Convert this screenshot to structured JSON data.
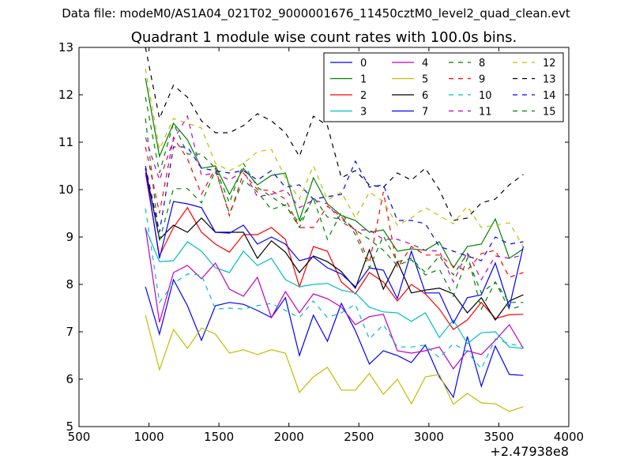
{
  "figure": {
    "supertitle": "Data file: modeM0/AS1A04_021T02_9000001676_11450cztM0_level2_quad_clean.evt",
    "x_offset_label": "+2.47938e8"
  },
  "chart_data": {
    "type": "line",
    "title": "Quadrant 1 module wise count rates with 100.0s bins.",
    "xlabel": "",
    "ylabel": "",
    "xlim": [
      500,
      4000
    ],
    "ylim": [
      5,
      13
    ],
    "xticks": [
      500,
      1000,
      1500,
      2000,
      2500,
      3000,
      3500,
      4000
    ],
    "yticks": [
      5,
      6,
      7,
      8,
      9,
      10,
      11,
      12,
      13
    ],
    "x_offset": "+2.47938e8",
    "grid": false,
    "legend": {
      "placement": "upper right",
      "columns": 4
    },
    "x": [
      975,
      1075,
      1175,
      1275,
      1375,
      1475,
      1575,
      1675,
      1775,
      1875,
      1975,
      2075,
      2175,
      2275,
      2375,
      2475,
      2575,
      2675,
      2775,
      2875,
      2975,
      3075,
      3175,
      3275,
      3375,
      3475,
      3575,
      3675
    ],
    "series": [
      {
        "name": "0",
        "color": "#0000ff",
        "dash": "solid",
        "values": [
          7.95,
          6.95,
          8.1,
          7.55,
          6.82,
          7.55,
          7.62,
          7.58,
          7.45,
          7.3,
          7.72,
          6.5,
          7.35,
          6.8,
          7.6,
          7.02,
          6.32,
          6.6,
          6.5,
          6.35,
          6.72,
          6.05,
          5.62,
          6.9,
          5.85,
          6.7,
          6.1,
          6.08
        ]
      },
      {
        "name": "1",
        "color": "#008000",
        "dash": "solid",
        "values": [
          12.35,
          10.7,
          11.4,
          11.05,
          10.45,
          10.5,
          9.9,
          10.45,
          10.1,
          10.3,
          10.35,
          9.35,
          10.25,
          9.7,
          9.45,
          9.35,
          9.1,
          9.15,
          8.7,
          8.75,
          8.72,
          8.9,
          8.35,
          8.8,
          8.85,
          9.38,
          8.55,
          8.75
        ]
      },
      {
        "name": "2",
        "color": "#ff0000",
        "dash": "solid",
        "values": [
          10.35,
          8.6,
          9.2,
          9.62,
          9.1,
          8.85,
          8.68,
          9.05,
          9.05,
          9.2,
          8.95,
          7.95,
          8.8,
          8.7,
          8.05,
          7.8,
          8.25,
          8.05,
          7.65,
          8.0,
          7.8,
          7.48,
          7.05,
          7.25,
          7.62,
          7.28,
          7.36,
          7.37
        ]
      },
      {
        "name": "3",
        "color": "#00bfbf",
        "dash": "solid",
        "values": [
          9.18,
          8.48,
          8.5,
          8.9,
          8.7,
          8.35,
          8.25,
          8.7,
          8.4,
          8.55,
          8.1,
          7.95,
          8.0,
          8.02,
          7.88,
          7.82,
          7.52,
          7.42,
          7.4,
          7.22,
          7.4,
          6.88,
          7.25,
          6.75,
          6.98,
          7.0,
          6.68,
          6.65
        ]
      },
      {
        "name": "4",
        "color": "#bf00bf",
        "dash": "solid",
        "values": [
          9.2,
          7.2,
          8.25,
          8.4,
          8.12,
          8.45,
          7.9,
          7.75,
          8.15,
          7.3,
          7.85,
          7.4,
          7.8,
          7.7,
          7.52,
          7.15,
          7.32,
          7.37,
          6.6,
          6.55,
          6.6,
          6.68,
          6.22,
          6.6,
          6.52,
          6.82,
          7.15,
          6.65
        ]
      },
      {
        "name": "5",
        "color": "#bfbf00",
        "dash": "solid",
        "values": [
          7.35,
          6.2,
          7.05,
          6.65,
          7.08,
          6.95,
          6.55,
          6.62,
          6.52,
          6.62,
          6.55,
          5.72,
          6.05,
          6.25,
          5.77,
          5.77,
          6.12,
          5.68,
          6.0,
          5.48,
          6.05,
          6.1,
          5.47,
          5.7,
          5.5,
          5.48,
          5.32,
          5.42
        ]
      },
      {
        "name": "6",
        "color": "#000000",
        "dash": "solid",
        "values": [
          10.45,
          8.95,
          9.25,
          9.1,
          9.4,
          9.1,
          9.1,
          9.1,
          8.55,
          8.92,
          8.68,
          8.25,
          8.6,
          8.48,
          8.27,
          7.92,
          8.73,
          7.9,
          8.48,
          7.82,
          7.88,
          7.92,
          7.8,
          7.4,
          7.72,
          7.25,
          7.65,
          7.78
        ]
      },
      {
        "name": "7",
        "color": "#0000ff",
        "dash": "solid",
        "values": [
          10.45,
          8.55,
          9.75,
          9.7,
          9.62,
          9.1,
          9.08,
          9.25,
          8.85,
          9.0,
          8.85,
          8.5,
          8.58,
          8.35,
          8.22,
          7.95,
          8.35,
          8.3,
          7.7,
          8.7,
          7.82,
          7.82,
          7.18,
          7.72,
          7.78,
          8.45,
          7.52,
          8.8
        ]
      },
      {
        "name": "8",
        "color": "#008000",
        "dash": "dashed",
        "values": [
          11.5,
          8.92,
          10.02,
          10.02,
          9.72,
          10.4,
          9.5,
          10.2,
          9.95,
          9.58,
          9.68,
          9.2,
          9.85,
          9.42,
          9.38,
          9.15,
          8.95,
          8.72,
          8.4,
          8.52,
          8.2,
          8.32,
          7.75,
          8.55,
          7.82,
          8.05,
          7.62,
          7.62
        ]
      },
      {
        "name": "9",
        "color": "#ff0000",
        "dash": "dashed",
        "values": [
          10.9,
          9.5,
          11.1,
          10.65,
          9.9,
          10.45,
          9.45,
          10.35,
          10.0,
          9.98,
          9.8,
          9.2,
          9.2,
          9.65,
          9.42,
          9.15,
          8.45,
          9.95,
          8.35,
          8.8,
          8.62,
          8.62,
          8.38,
          8.3,
          8.65,
          8.72,
          8.15,
          8.25
        ]
      },
      {
        "name": "10",
        "color": "#00bfbf",
        "dash": "dashed",
        "values": [
          9.6,
          7.62,
          8.02,
          8.22,
          8.2,
          7.48,
          7.5,
          7.48,
          7.55,
          7.6,
          7.45,
          7.3,
          7.65,
          7.3,
          7.4,
          7.58,
          6.85,
          7.15,
          6.68,
          6.68,
          6.72,
          6.45,
          6.75,
          6.58,
          6.22,
          6.85,
          6.75,
          6.68
        ]
      },
      {
        "name": "11",
        "color": "#bf00bf",
        "dash": "dashed",
        "values": [
          11.1,
          10.2,
          11.05,
          11.55,
          10.3,
          10.35,
          10.2,
          10.4,
          9.85,
          9.9,
          10.0,
          9.62,
          9.78,
          9.7,
          9.32,
          9.15,
          9.15,
          8.95,
          8.95,
          8.85,
          8.72,
          8.7,
          8.05,
          8.68,
          8.1,
          8.6,
          8.55,
          8.62
        ]
      },
      {
        "name": "12",
        "color": "#bfbf00",
        "dash": "dashed",
        "values": [
          12.55,
          10.85,
          11.5,
          11.4,
          11.3,
          10.55,
          10.4,
          10.55,
          10.8,
          10.85,
          10.25,
          9.8,
          10.5,
          9.78,
          9.95,
          9.4,
          9.95,
          9.75,
          9.25,
          9.4,
          9.62,
          9.45,
          9.28,
          9.65,
          9.2,
          9.25,
          9.3,
          8.8
        ]
      },
      {
        "name": "13",
        "color": "#000000",
        "dash": "dashed",
        "values": [
          13.0,
          11.5,
          12.2,
          11.95,
          11.45,
          11.2,
          11.2,
          11.35,
          11.6,
          11.45,
          11.2,
          10.7,
          11.55,
          11.35,
          10.25,
          10.4,
          10.1,
          10.05,
          10.35,
          10.2,
          10.45,
          10.0,
          9.35,
          9.4,
          9.72,
          9.8,
          10.1,
          10.32
        ]
      },
      {
        "name": "14",
        "color": "#0000ff",
        "dash": "dashed",
        "values": [
          10.5,
          9.1,
          10.9,
          10.9,
          10.45,
          10.4,
          10.35,
          10.4,
          10.2,
          10.4,
          10.05,
          10.1,
          9.8,
          9.85,
          9.9,
          10.6,
          10.05,
          10.1,
          9.35,
          9.35,
          9.28,
          8.8,
          8.7,
          8.6,
          8.5,
          9.0,
          8.85,
          8.9
        ]
      },
      {
        "name": "15",
        "color": "#008000",
        "dash": "dashed",
        "values": [
          11.95,
          10.35,
          11.4,
          10.75,
          10.75,
          10.45,
          9.72,
          10.55,
          10.05,
          9.85,
          9.65,
          9.3,
          9.82,
          8.95,
          9.52,
          9.05,
          8.35,
          9.02,
          8.48,
          8.55,
          8.25,
          8.6,
          8.2,
          8.65,
          7.48,
          8.05,
          7.48,
          7.55
        ]
      }
    ]
  }
}
